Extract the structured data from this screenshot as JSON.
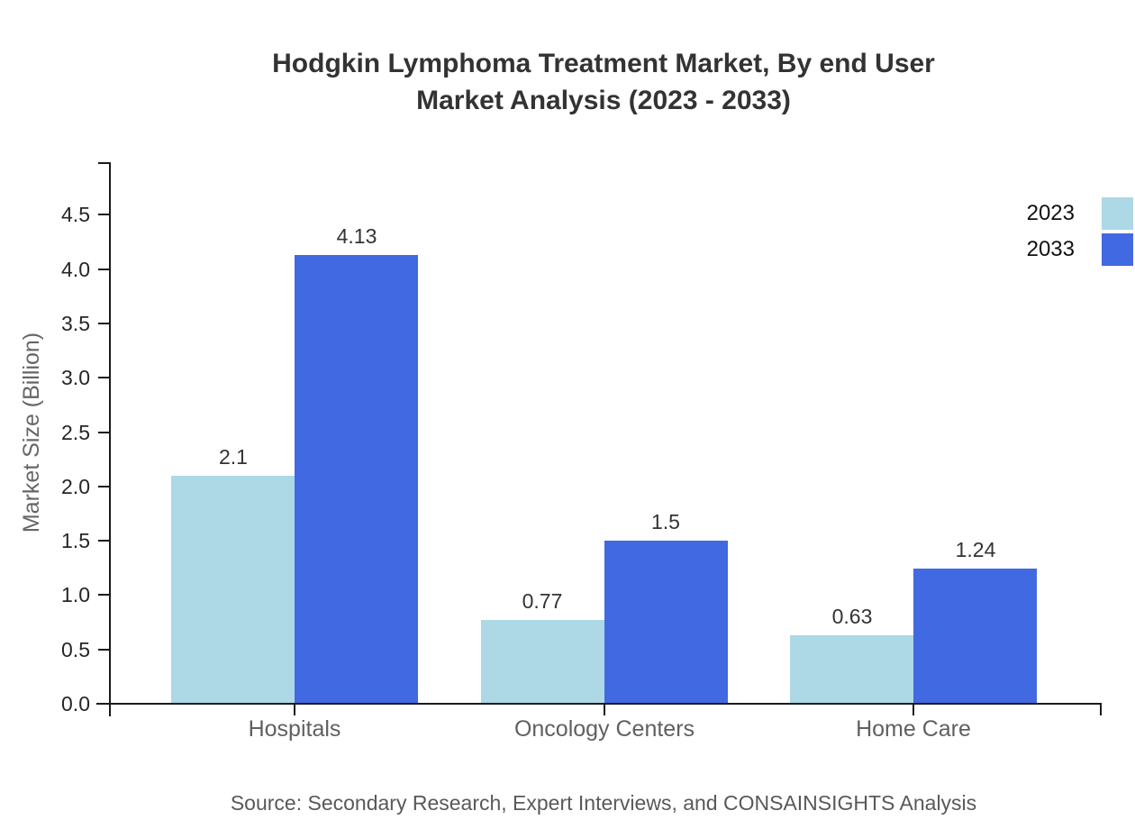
{
  "chart_data": {
    "type": "bar",
    "title_lines": [
      "Hodgkin Lymphoma Treatment Market, By end User",
      "Market Analysis (2023 - 2033)"
    ],
    "ylabel": "Market Size (Billion)",
    "categories": [
      "Hospitals",
      "Oncology Centers",
      "Home Care"
    ],
    "series": [
      {
        "name": "2023",
        "color": "#add8e6",
        "values": [
          2.1,
          0.77,
          0.63
        ],
        "labels": [
          "2.1",
          "0.77",
          "0.63"
        ]
      },
      {
        "name": "2033",
        "color": "#4169e1",
        "values": [
          4.13,
          1.5,
          1.24
        ],
        "labels": [
          "4.13",
          "1.5",
          "1.24"
        ]
      }
    ],
    "ylim": [
      0,
      5
    ],
    "ytick_labels": [
      "0.0",
      "0.5",
      "1.0",
      "1.5",
      "2.0",
      "2.5",
      "3.0",
      "3.5",
      "4.0",
      "4.5"
    ],
    "legend_position": "top-right",
    "grid": false,
    "axis_color": "#1a1a1a"
  },
  "source_note": "Source: Secondary Research, Expert Interviews, and CONSAINSIGHTS Analysis"
}
